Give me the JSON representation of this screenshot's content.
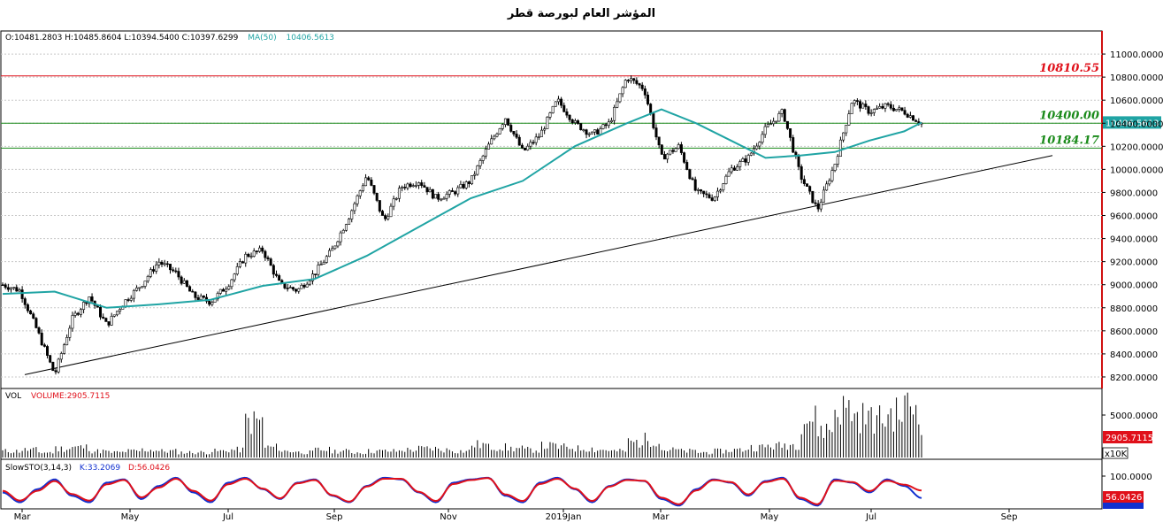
{
  "title": "المؤشر العام لبورصة قطر",
  "ohlc_line": {
    "open": "O:10481.2803",
    "high": "H:10485.8604",
    "low": "L:10394.5400",
    "close": "C:10397.6299",
    "ma_label": "MA(50)",
    "ma_value": "10406.5613"
  },
  "volume_header": {
    "label": "VOL",
    "value": "VOLUME:2905.7115"
  },
  "stoch_header": {
    "label": "SlowSTO(3,14,3)",
    "k": "K:33.2069",
    "d": "D:56.0426"
  },
  "price_axis_labels": [
    "11000.0000",
    "10800.0000",
    "10600.0000",
    "10400.0000",
    "10200.0000",
    "10000.0000",
    "9800.0000",
    "9600.0000",
    "9400.0000",
    "9200.0000",
    "9000.0000",
    "8800.0000",
    "8600.0000",
    "8400.0000",
    "8200.0000"
  ],
  "volume_axis": {
    "tick": "5000.0000",
    "current": "2905.7115",
    "multiplier": "x10K"
  },
  "stoch_axis": {
    "tick": "100.0000",
    "d_current": "56.0426",
    "k_current": "33.2069"
  },
  "ma_current": "10406.5613",
  "x_axis_labels": [
    "Mar",
    "May",
    "Jul",
    "Sep",
    "Nov",
    "2019Jan",
    "Mar",
    "May",
    "Jul",
    "Sep"
  ],
  "colors": {
    "resistance": "#e0101a",
    "support": "#1a8a1a",
    "ma": "#20a4a4",
    "stoch_k": "#1030d0",
    "stoch_d": "#e0101a",
    "frame_right": "#d01010"
  },
  "chart_data": {
    "type": "candlestick",
    "series_ma_name": "MA(50)",
    "ylim": [
      8100,
      11200
    ],
    "levels": [
      {
        "label": "10810.55",
        "value": 10810.55,
        "color": "red"
      },
      {
        "label": "10400.00",
        "value": 10400.0,
        "color": "green"
      },
      {
        "label": "10184.17",
        "value": 10184.17,
        "color": "green"
      }
    ],
    "trendline": {
      "from": {
        "x": "Mar 2018",
        "y": 8220
      },
      "to": {
        "x": "Aug 2019",
        "y": 10120
      }
    },
    "close_path": [
      [
        0,
        9000
      ],
      [
        1,
        8950
      ],
      [
        2,
        8600
      ],
      [
        3,
        8220
      ],
      [
        4,
        8700
      ],
      [
        5,
        8900
      ],
      [
        6,
        8650
      ],
      [
        7,
        8850
      ],
      [
        8,
        9000
      ],
      [
        9,
        9200
      ],
      [
        10,
        9100
      ],
      [
        11,
        8900
      ],
      [
        12,
        8850
      ],
      [
        13,
        9000
      ],
      [
        14,
        9250
      ],
      [
        15,
        9300
      ],
      [
        16,
        9000
      ],
      [
        17,
        8950
      ],
      [
        18,
        9100
      ],
      [
        19,
        9300
      ],
      [
        20,
        9600
      ],
      [
        21,
        9950
      ],
      [
        22,
        9550
      ],
      [
        23,
        9850
      ],
      [
        24,
        9900
      ],
      [
        25,
        9750
      ],
      [
        26,
        9800
      ],
      [
        27,
        9900
      ],
      [
        28,
        10200
      ],
      [
        29,
        10450
      ],
      [
        30,
        10150
      ],
      [
        31,
        10300
      ],
      [
        32,
        10600
      ],
      [
        33,
        10400
      ],
      [
        34,
        10300
      ],
      [
        35,
        10400
      ],
      [
        36,
        10800
      ],
      [
        37,
        10700
      ],
      [
        38,
        10100
      ],
      [
        39,
        10200
      ],
      [
        40,
        9800
      ],
      [
        41,
        9750
      ],
      [
        42,
        10000
      ],
      [
        43,
        10100
      ],
      [
        44,
        10350
      ],
      [
        45,
        10500
      ],
      [
        46,
        9950
      ],
      [
        47,
        9650
      ],
      [
        48,
        10050
      ],
      [
        49,
        10600
      ],
      [
        50,
        10500
      ],
      [
        51,
        10550
      ],
      [
        52,
        10500
      ],
      [
        53,
        10400
      ]
    ],
    "ma_path": [
      [
        0,
        8920
      ],
      [
        3,
        8940
      ],
      [
        6,
        8800
      ],
      [
        9,
        8830
      ],
      [
        12,
        8870
      ],
      [
        15,
        8990
      ],
      [
        18,
        9050
      ],
      [
        21,
        9250
      ],
      [
        24,
        9500
      ],
      [
        27,
        9750
      ],
      [
        30,
        9900
      ],
      [
        33,
        10200
      ],
      [
        36,
        10400
      ],
      [
        38,
        10520
      ],
      [
        40,
        10400
      ],
      [
        42,
        10250
      ],
      [
        44,
        10100
      ],
      [
        46,
        10120
      ],
      [
        48,
        10150
      ],
      [
        50,
        10250
      ],
      [
        52,
        10330
      ],
      [
        53,
        10406
      ]
    ],
    "volume_values": [
      5,
      6,
      4,
      7,
      8,
      5,
      4,
      5,
      6,
      5,
      4,
      4,
      5,
      6,
      28,
      8,
      5,
      4,
      6,
      5,
      4,
      5,
      5,
      6,
      7,
      6,
      5,
      10,
      8,
      7,
      6,
      9,
      8,
      7,
      6,
      5,
      12,
      14,
      6,
      5,
      4,
      5,
      6,
      8,
      9,
      10,
      30,
      22,
      38,
      32,
      30,
      34,
      40,
      29
    ],
    "stoch_k": [
      50,
      20,
      60,
      90,
      40,
      20,
      80,
      90,
      30,
      70,
      95,
      50,
      20,
      80,
      95,
      60,
      30,
      80,
      90,
      40,
      20,
      70,
      95,
      90,
      50,
      20,
      80,
      90,
      95,
      40,
      20,
      80,
      95,
      60,
      20,
      70,
      90,
      85,
      30,
      10,
      60,
      90,
      80,
      40,
      85,
      95,
      30,
      10,
      90,
      80,
      50,
      90,
      70,
      33
    ],
    "stoch_d": [
      55,
      25,
      55,
      85,
      45,
      25,
      75,
      88,
      35,
      65,
      92,
      55,
      25,
      75,
      92,
      62,
      32,
      78,
      88,
      42,
      22,
      68,
      92,
      92,
      52,
      24,
      76,
      88,
      94,
      44,
      24,
      76,
      92,
      62,
      24,
      68,
      88,
      86,
      34,
      14,
      56,
      88,
      82,
      44,
      82,
      92,
      34,
      14,
      86,
      82,
      54,
      86,
      74,
      56
    ]
  }
}
